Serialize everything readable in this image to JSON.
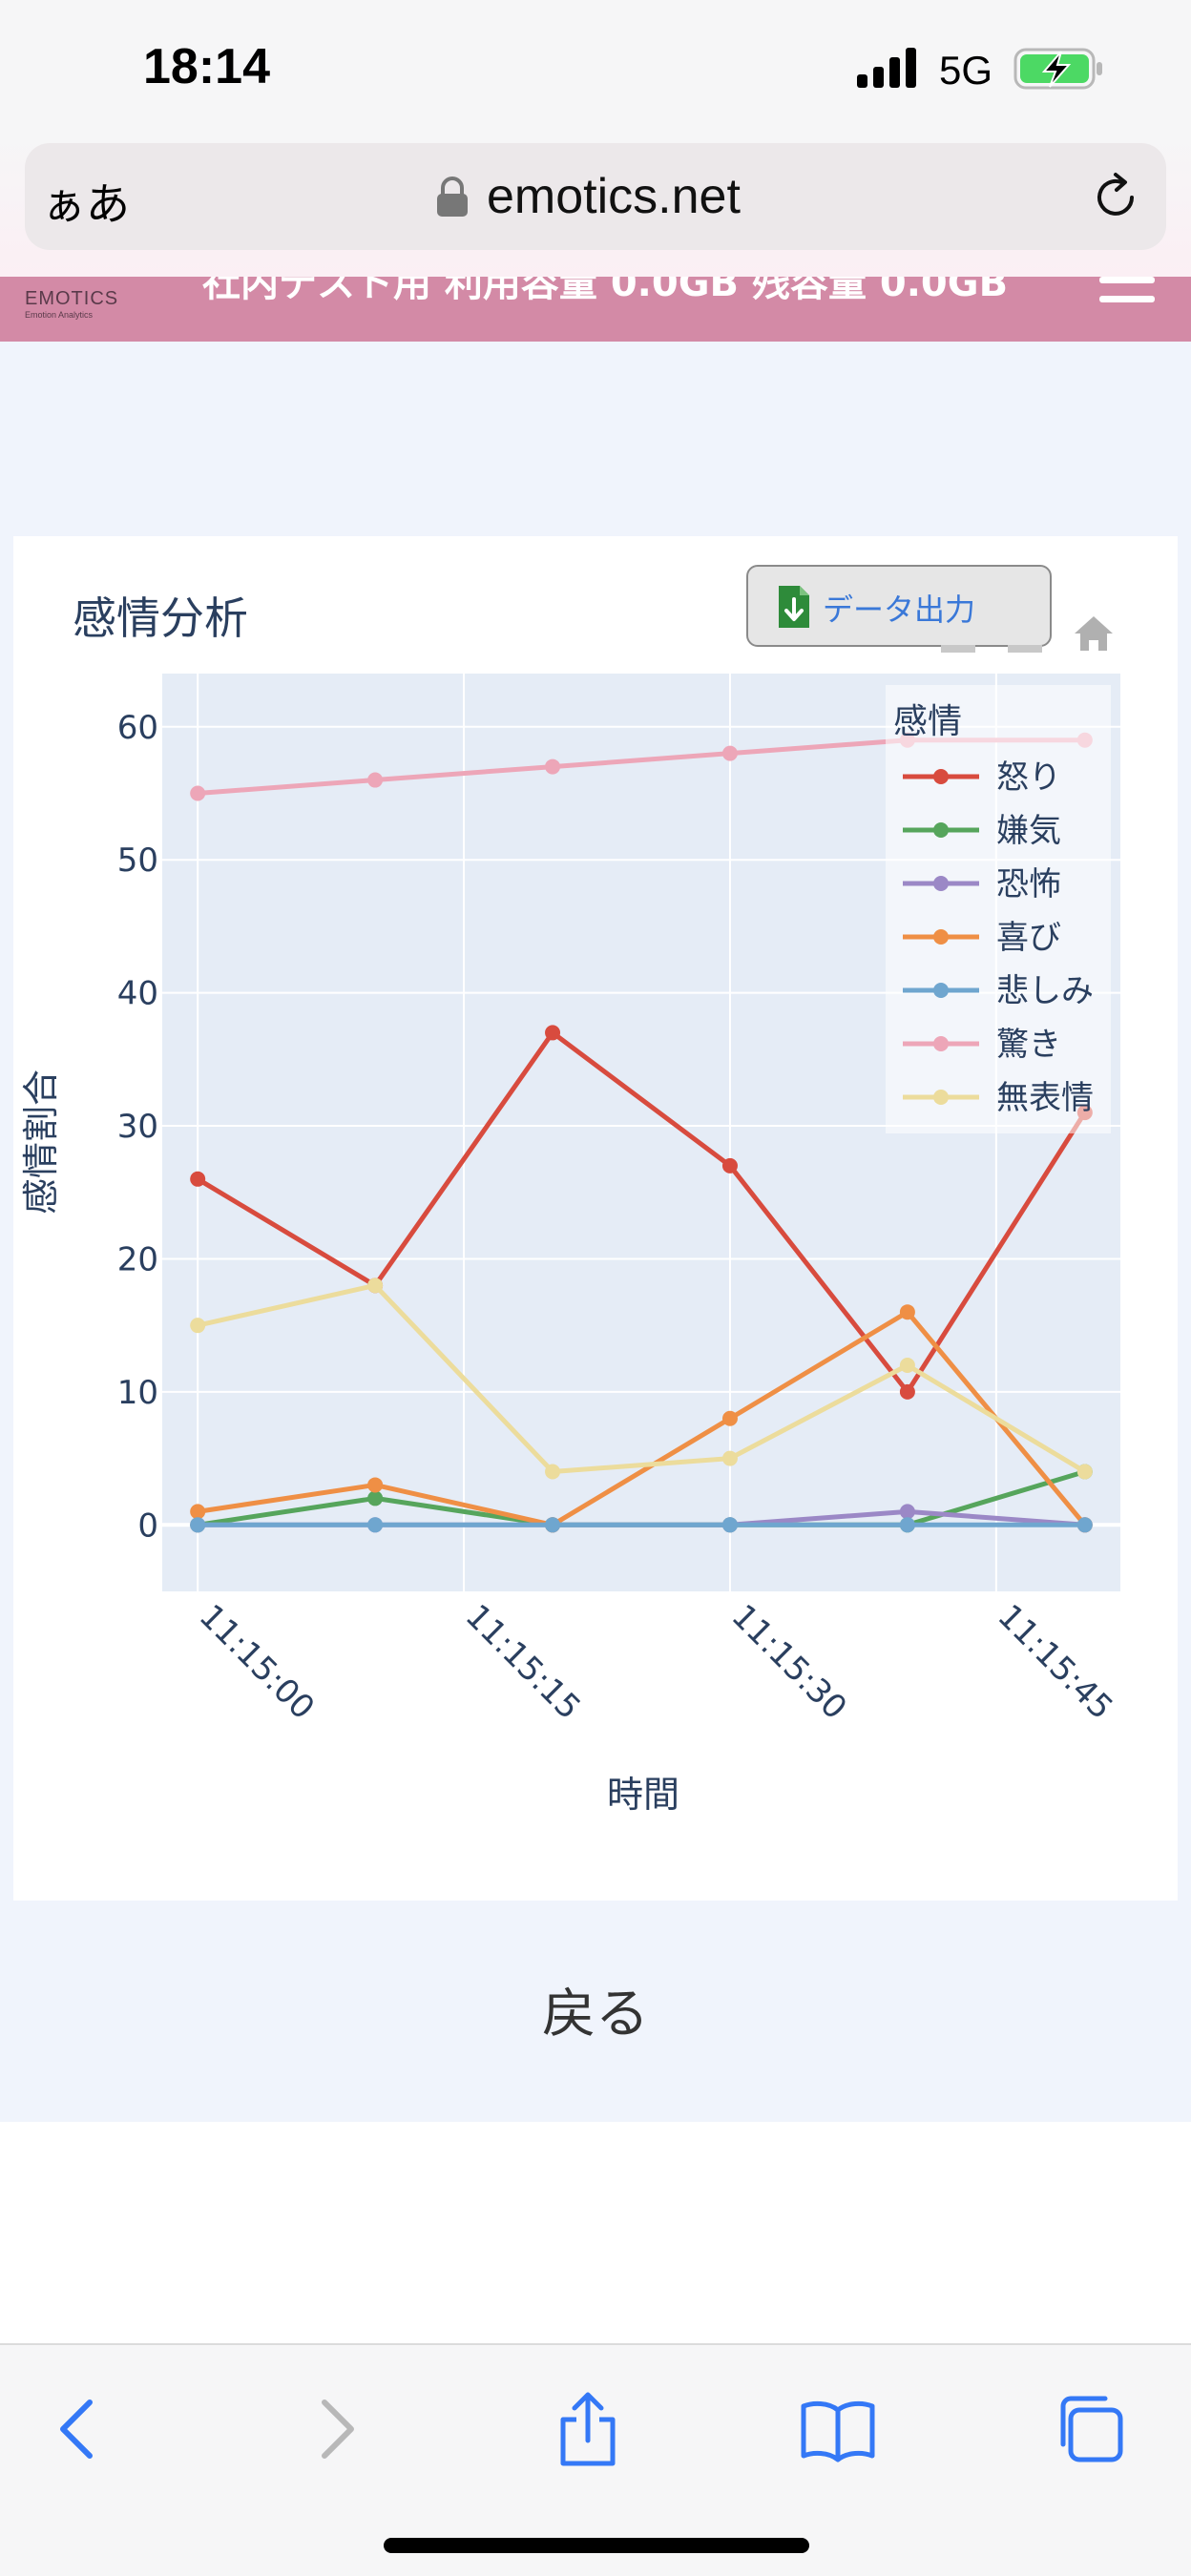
{
  "status_bar": {
    "time": "18:14",
    "network": "5G",
    "battery_charging": true
  },
  "browser": {
    "aa_label": "ぁあ",
    "url": "emotics.net",
    "back_enabled": true,
    "forward_enabled": false
  },
  "site_header": {
    "logo_text": "EMOTICS",
    "logo_subtitle": "Emotion Analytics",
    "info": "社内テスト用 利用容量 0.0GB 残容量 0.0GB"
  },
  "chart_title": "感情分析",
  "export_button_label": "データ出力",
  "back_link_label": "戻る",
  "colors": {
    "plot_bg": "#e5ecf6",
    "header_bg": "#d38aa6",
    "page_bg": "#f0f4fc",
    "axis_text": "#2a3f5f",
    "ios_blue": "#3478f6"
  },
  "chart_data": {
    "type": "line",
    "xlabel": "時間",
    "ylabel": "感情割合",
    "x": [
      "11:15:00",
      "11:15:10",
      "11:15:20",
      "11:15:30",
      "11:15:40",
      "11:15:50"
    ],
    "xticks": [
      "11:15:00",
      "11:15:15",
      "11:15:30",
      "11:15:45"
    ],
    "xlim": [
      "11:14:58",
      "11:15:52"
    ],
    "ylim": [
      -5,
      64
    ],
    "yticks": [
      0,
      10,
      20,
      30,
      40,
      50,
      60
    ],
    "grid": true,
    "legend_title": "感情",
    "legend_position": "top-right",
    "series": [
      {
        "name": "怒り",
        "color": "#d84b3e",
        "values": [
          26,
          18,
          37,
          27,
          10,
          31
        ]
      },
      {
        "name": "嫌気",
        "color": "#56a55c",
        "values": [
          0,
          2,
          0,
          0,
          0,
          4
        ]
      },
      {
        "name": "恐怖",
        "color": "#9b88c6",
        "values": [
          0,
          0,
          0,
          0,
          1,
          0
        ]
      },
      {
        "name": "喜び",
        "color": "#ef8f45",
        "values": [
          1,
          3,
          0,
          8,
          16,
          0
        ]
      },
      {
        "name": "悲しみ",
        "color": "#6fa6cf",
        "values": [
          0,
          0,
          0,
          0,
          0,
          0
        ]
      },
      {
        "name": "驚き",
        "color": "#eda6b8",
        "values": [
          55,
          56,
          57,
          58,
          59,
          59
        ]
      },
      {
        "name": "無表情",
        "color": "#ecdc9c",
        "values": [
          15,
          18,
          4,
          5,
          12,
          4
        ]
      }
    ]
  }
}
